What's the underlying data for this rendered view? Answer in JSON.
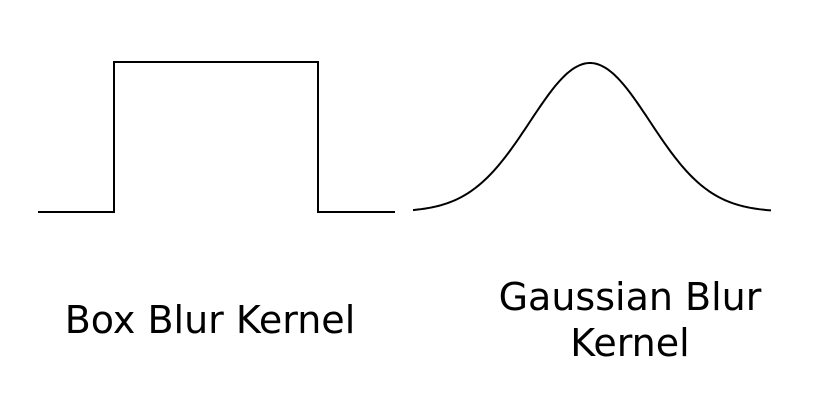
{
  "box_kernel": {
    "label": "Box Blur Kernel"
  },
  "gaussian_kernel": {
    "label_line_1": "Gaussian Blur",
    "label_line_2": "Kernel"
  },
  "colors": {
    "stroke": "#000000",
    "background": "#ffffff"
  }
}
